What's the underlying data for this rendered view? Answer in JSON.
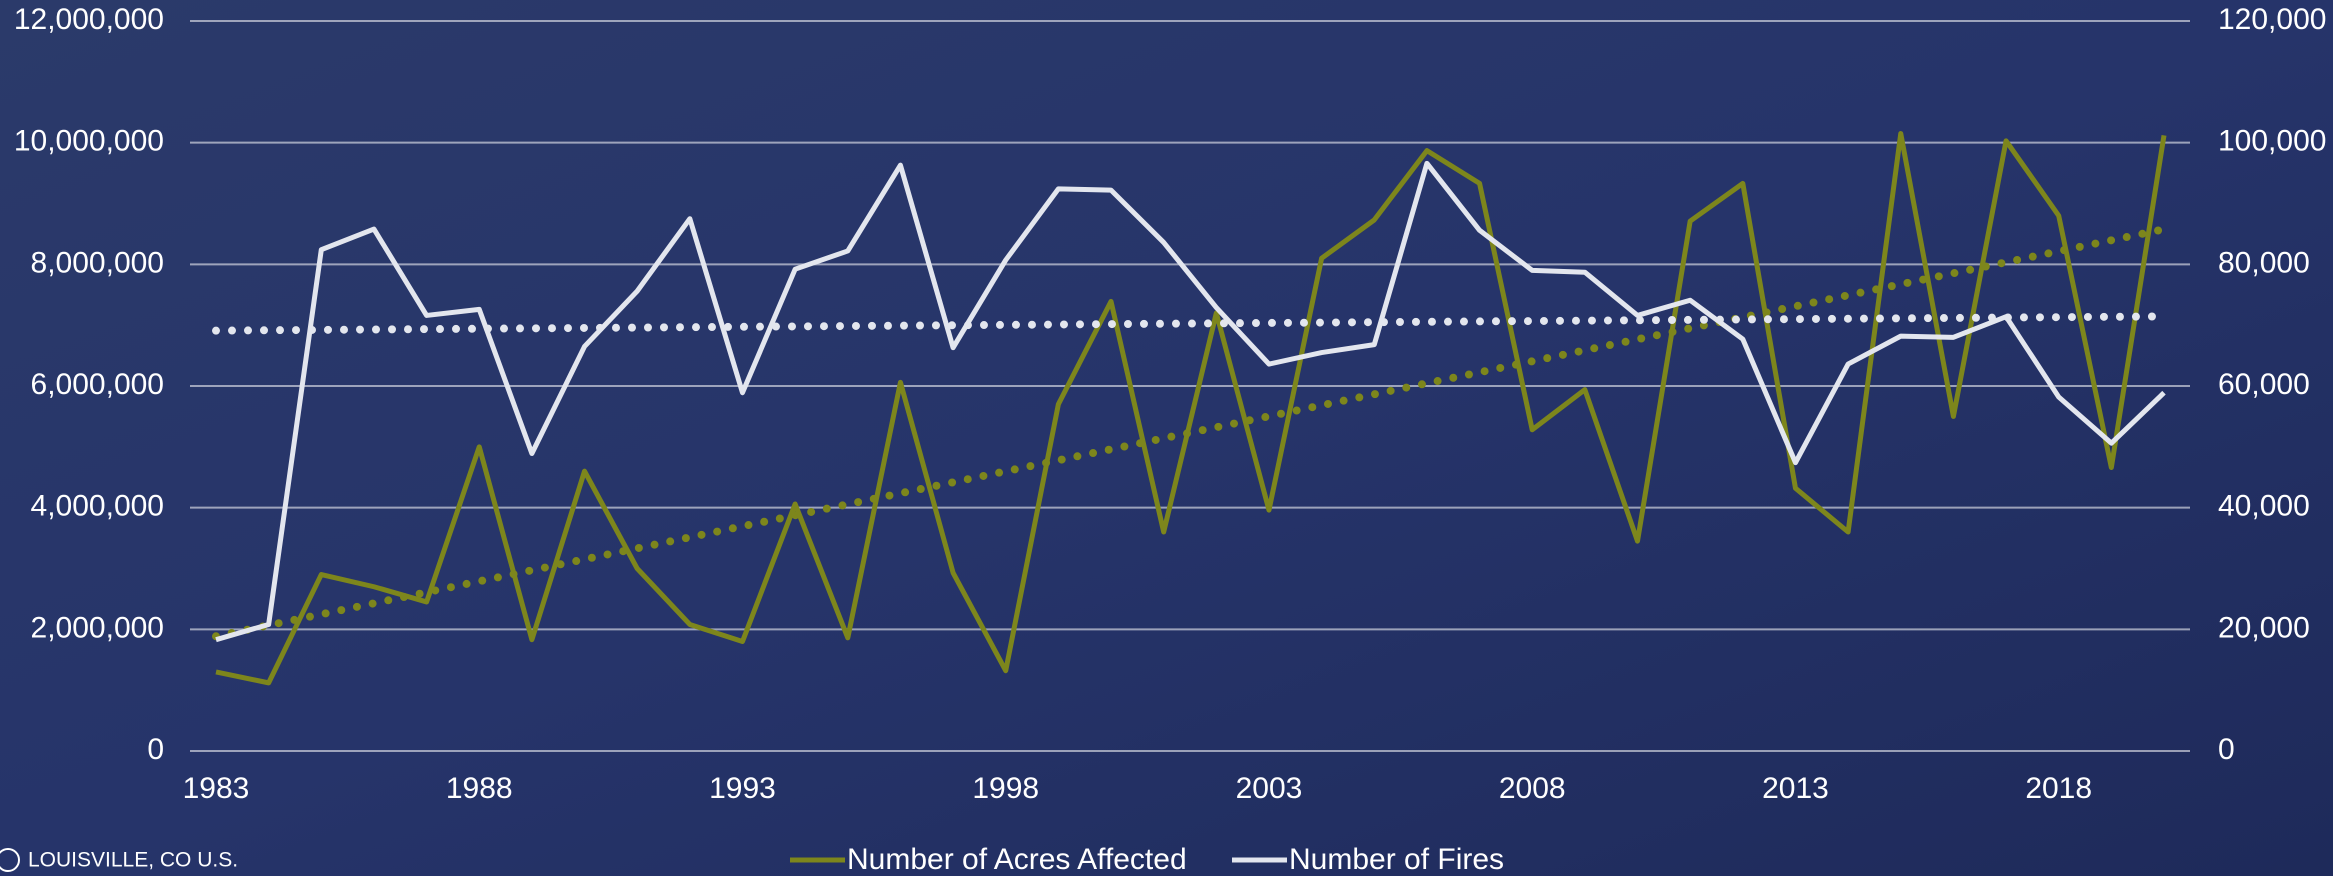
{
  "chart_data": {
    "type": "line",
    "trendlines": true,
    "grid": true,
    "footer": "LOUISVILLE, CO U.S.",
    "x": [
      1983,
      1984,
      1985,
      1986,
      1987,
      1988,
      1989,
      1990,
      1991,
      1992,
      1993,
      1994,
      1995,
      1996,
      1997,
      1998,
      1999,
      2000,
      2001,
      2002,
      2003,
      2004,
      2005,
      2006,
      2007,
      2008,
      2009,
      2010,
      2011,
      2012,
      2013,
      2014,
      2015,
      2016,
      2017,
      2018,
      2019,
      2020
    ],
    "xlim": [
      1983,
      2020
    ],
    "xticks": [
      1983,
      1988,
      1993,
      1998,
      2003,
      2008,
      2013,
      2018
    ],
    "ylim": [
      0,
      12000000
    ],
    "yticks": [
      0,
      {
        "value": 2000000,
        "label": "2,000,000"
      },
      {
        "value": 4000000,
        "label": "4,000,000"
      },
      {
        "value": 6000000,
        "label": "6,000,000"
      },
      {
        "value": 8000000,
        "label": "8,000,000"
      },
      {
        "value": 10000000,
        "label": "10,000,000"
      },
      {
        "value": 12000000,
        "label": "12,000,000"
      }
    ],
    "y2lim": [
      0,
      120000
    ],
    "y2ticks": [
      0,
      {
        "value": 20000,
        "label": "20,000"
      },
      {
        "value": 40000,
        "label": "40,000"
      },
      {
        "value": 60000,
        "label": "60,000"
      },
      {
        "value": 80000,
        "label": "80,000"
      },
      {
        "value": 100000,
        "label": "100,000"
      },
      {
        "value": 120000,
        "label": "120,000"
      }
    ],
    "series": [
      {
        "name": "Number of Acres Affected",
        "color": "#7d861c",
        "values": [
          1300000,
          1120000,
          2900000,
          2700000,
          2450000,
          5000000,
          1830000,
          4600000,
          3000000,
          2080000,
          1800000,
          4060000,
          1860000,
          6060000,
          2930000,
          1320000,
          5700000,
          7390000,
          3600000,
          7200000,
          3960000,
          8100000,
          8730000,
          9870000,
          9330000,
          5280000,
          5940000,
          3450000,
          8710000,
          9330000,
          4320000,
          3600000,
          10150000,
          5500000,
          10030000,
          8800000,
          4660000,
          10120000
        ]
      },
      {
        "name": "Number of Fires",
        "color": "#e3e6ee",
        "axis": "y2",
        "values": [
          18300,
          20800,
          82400,
          85800,
          71600,
          72600,
          48900,
          66500,
          75600,
          87500,
          58900,
          79200,
          82200,
          96300,
          66300,
          80700,
          92400,
          92200,
          83600,
          72900,
          63600,
          65500,
          66800,
          96600,
          85600,
          79000,
          78700,
          71600,
          74100,
          67700,
          47400,
          63600,
          68200,
          68000,
          71400,
          58200,
          50600,
          58900
        ]
      }
    ]
  }
}
